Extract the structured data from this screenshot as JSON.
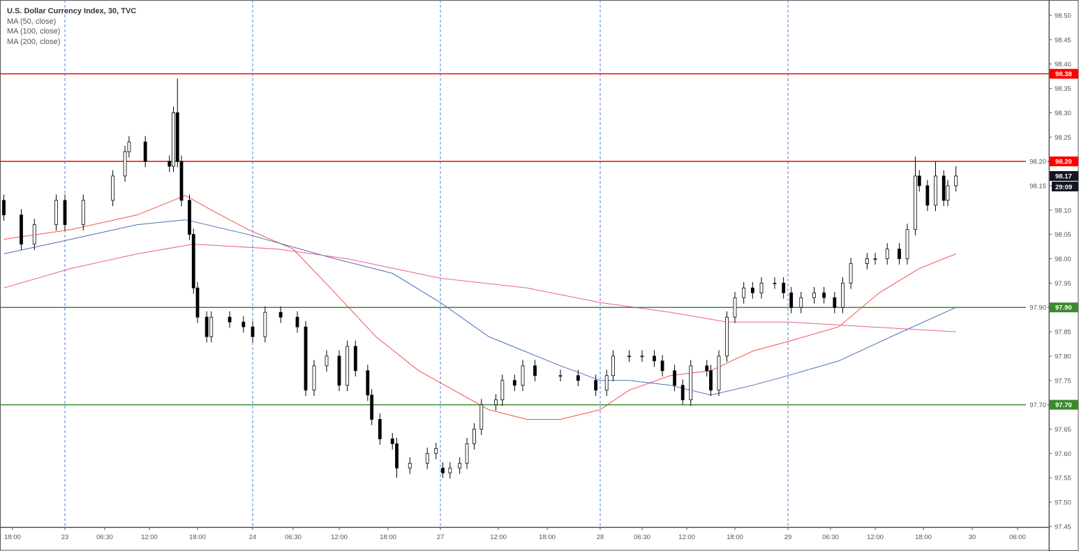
{
  "legend": {
    "title": "U.S. Dollar Currency Index, 30, TVC",
    "ma": [
      "MA (50, close)",
      "MA (100, close)",
      "MA (200, close)"
    ]
  },
  "colors": {
    "bull": "#ffffff",
    "bear": "#000000",
    "resistance": "#ff0000",
    "support": "#3c8a2e",
    "ma50": "#f2524f",
    "ma100": "#4a6fb8",
    "ma200": "#ec5d8b",
    "last_price_tag": "#131722",
    "day_separator": "#4a80d8"
  },
  "chart_data": {
    "type": "candlestick",
    "symbol": "U.S. Dollar Currency Index, 30, TVC",
    "ylim": [
      97.45,
      98.5
    ],
    "yticks": [
      "98.50",
      "98.45",
      "98.40",
      "98.35",
      "98.30",
      "98.25",
      "98.20",
      "98.15",
      "98.10",
      "98.05",
      "98.00",
      "97.95",
      "97.90",
      "97.85",
      "97.80",
      "97.75",
      "97.70",
      "97.65",
      "97.60",
      "97.55",
      "97.50",
      "97.45"
    ],
    "xticks": [
      {
        "t": "22 18:00",
        "label": "18:00"
      },
      {
        "t": "23 00:00",
        "label": "23"
      },
      {
        "t": "23 06:30",
        "label": "06:30"
      },
      {
        "t": "23 12:00",
        "label": "12:00"
      },
      {
        "t": "23 18:00",
        "label": "18:00"
      },
      {
        "t": "24 00:00",
        "label": "24"
      },
      {
        "t": "24 06:30",
        "label": "06:30"
      },
      {
        "t": "24 12:00",
        "label": "12:00"
      },
      {
        "t": "24 18:00",
        "label": "18:00"
      },
      {
        "t": "27 00:00",
        "label": "27"
      },
      {
        "t": "27 12:00",
        "label": "12:00"
      },
      {
        "t": "27 18:00",
        "label": "18:00"
      },
      {
        "t": "28 00:00",
        "label": "28"
      },
      {
        "t": "28 06:30",
        "label": "06:30"
      },
      {
        "t": "28 12:00",
        "label": "12:00"
      },
      {
        "t": "28 18:00",
        "label": "18:00"
      },
      {
        "t": "29 00:00",
        "label": "29"
      },
      {
        "t": "29 06:30",
        "label": "06:30"
      },
      {
        "t": "29 12:00",
        "label": "12:00"
      },
      {
        "t": "29 18:00",
        "label": "18:00"
      },
      {
        "t": "30 00:00",
        "label": "30"
      },
      {
        "t": "30 06:00",
        "label": "06:00"
      }
    ],
    "day_separators": [
      "23 00:00",
      "24 00:00",
      "27 00:00",
      "28 00:00",
      "29 00:00"
    ],
    "candles": [
      [
        "22 17:00",
        98.12,
        98.09
      ],
      [
        "22 19:00",
        98.09,
        98.03
      ],
      [
        "22 20:30",
        98.03,
        98.07
      ],
      [
        "22 23:00",
        98.07,
        98.12
      ],
      [
        "23 00:00",
        98.12,
        98.07
      ],
      [
        "23 03:00",
        98.07,
        98.12
      ],
      [
        "23 07:30",
        98.12,
        98.17
      ],
      [
        "23 09:00",
        98.17,
        98.22
      ],
      [
        "23 09:30",
        98.22,
        98.24
      ],
      [
        "23 11:30",
        98.24,
        98.2
      ],
      [
        "23 14:30",
        98.2,
        98.19
      ],
      [
        "23 15:00",
        98.19,
        98.3
      ],
      [
        "23 15:30",
        98.3,
        98.2,
        98.37
      ],
      [
        "23 16:00",
        98.2,
        98.12
      ],
      [
        "23 17:00",
        98.12,
        98.05
      ],
      [
        "23 17:30",
        98.05,
        97.94
      ],
      [
        "23 18:00",
        97.94,
        97.88
      ],
      [
        "23 19:00",
        97.88,
        97.84
      ],
      [
        "23 19:30",
        97.84,
        97.88
      ],
      [
        "23 21:30",
        97.88,
        97.87
      ],
      [
        "23 23:00",
        97.87,
        97.86
      ],
      [
        "24 00:00",
        97.86,
        97.84
      ],
      [
        "24 02:00",
        97.84,
        97.89
      ],
      [
        "24 04:30",
        97.89,
        97.88
      ],
      [
        "24 07:00",
        97.88,
        97.86
      ],
      [
        "24 08:00",
        97.86,
        97.73
      ],
      [
        "24 09:00",
        97.73,
        97.78
      ],
      [
        "24 10:30",
        97.78,
        97.8
      ],
      [
        "24 12:00",
        97.8,
        97.74
      ],
      [
        "24 13:00",
        97.74,
        97.82
      ],
      [
        "24 14:00",
        97.82,
        97.77
      ],
      [
        "24 15:30",
        97.77,
        97.72
      ],
      [
        "24 16:00",
        97.72,
        97.67
      ],
      [
        "24 17:00",
        97.67,
        97.63
      ],
      [
        "24 18:30",
        97.63,
        97.62
      ],
      [
        "24 19:00",
        97.62,
        97.57,
        null,
        97.55
      ],
      [
        "24 20:30",
        97.57,
        97.58
      ],
      [
        "24 22:30",
        97.58,
        97.6
      ],
      [
        "24 23:30",
        97.6,
        97.61
      ],
      [
        "27 00:30",
        97.57,
        97.56,
        null,
        97.55
      ],
      [
        "27 02:00",
        97.56,
        97.57
      ],
      [
        "27 04:00",
        97.57,
        97.58
      ],
      [
        "27 05:30",
        97.58,
        97.62
      ],
      [
        "27 07:00",
        97.62,
        97.65
      ],
      [
        "27 08:30",
        97.65,
        97.7
      ],
      [
        "27 11:30",
        97.7,
        97.71
      ],
      [
        "27 12:30",
        97.71,
        97.75
      ],
      [
        "27 14:00",
        97.75,
        97.74
      ],
      [
        "27 15:00",
        97.74,
        97.78
      ],
      [
        "27 16:30",
        97.78,
        97.76
      ],
      [
        "27 19:30",
        97.76,
        97.76
      ],
      [
        "27 21:30",
        97.76,
        97.75
      ],
      [
        "27 23:30",
        97.75,
        97.73
      ],
      [
        "28 01:00",
        97.73,
        97.76
      ],
      [
        "28 02:00",
        97.76,
        97.8
      ],
      [
        "28 04:30",
        97.8,
        97.8
      ],
      [
        "28 06:30",
        97.8,
        97.8
      ],
      [
        "28 08:00",
        97.8,
        97.79
      ],
      [
        "28 09:00",
        97.79,
        97.77
      ],
      [
        "28 10:30",
        97.77,
        97.74
      ],
      [
        "28 11:30",
        97.74,
        97.71,
        null,
        97.7
      ],
      [
        "28 12:30",
        97.71,
        97.78
      ],
      [
        "28 14:30",
        97.78,
        97.77
      ],
      [
        "28 15:00",
        97.77,
        97.73
      ],
      [
        "28 16:00",
        97.73,
        97.8
      ],
      [
        "28 17:00",
        97.8,
        97.88
      ],
      [
        "28 18:00",
        97.88,
        97.92
      ],
      [
        "28 19:00",
        97.92,
        97.94
      ],
      [
        "28 20:00",
        97.94,
        97.93
      ],
      [
        "28 21:00",
        97.93,
        97.95
      ],
      [
        "28 22:30",
        97.95,
        97.95
      ],
      [
        "28 23:30",
        97.95,
        97.93
      ],
      [
        "29 00:30",
        97.93,
        97.9
      ],
      [
        "29 02:00",
        97.9,
        97.92
      ],
      [
        "29 04:00",
        97.92,
        97.93
      ],
      [
        "29 05:30",
        97.93,
        97.92
      ],
      [
        "29 07:00",
        97.92,
        97.9
      ],
      [
        "29 08:00",
        97.9,
        97.95
      ],
      [
        "29 09:00",
        97.95,
        97.99
      ],
      [
        "29 11:00",
        97.99,
        98.0
      ],
      [
        "29 12:00",
        98.0,
        98.0
      ],
      [
        "29 13:30",
        98.0,
        98.02
      ],
      [
        "29 15:00",
        98.02,
        98.0
      ],
      [
        "29 16:00",
        98.0,
        98.06
      ],
      [
        "29 17:00",
        98.06,
        98.17,
        98.21
      ],
      [
        "29 17:30",
        98.17,
        98.15
      ],
      [
        "29 18:30",
        98.15,
        98.11
      ],
      [
        "29 19:30",
        98.11,
        98.17,
        98.2
      ],
      [
        "29 20:30",
        98.17,
        98.12
      ],
      [
        "29 21:00",
        98.12,
        98.15
      ],
      [
        "29 22:00",
        98.15,
        98.17,
        98.19
      ]
    ],
    "moving_averages": [
      {
        "name": "MA (50, close)",
        "color": "#f2524f",
        "points": [
          [
            "22 17:00",
            98.04
          ],
          [
            "23 01:00",
            98.06
          ],
          [
            "23 10:30",
            98.09
          ],
          [
            "23 16:30",
            98.13
          ],
          [
            "23 19:30",
            98.1
          ],
          [
            "23 23:30",
            98.06
          ],
          [
            "24 06:30",
            98.02
          ],
          [
            "24 11:30",
            97.93
          ],
          [
            "24 16:30",
            97.84
          ],
          [
            "24 21:30",
            97.77
          ],
          [
            "27 10:00",
            97.69
          ],
          [
            "27 15:30",
            97.67
          ],
          [
            "27 19:30",
            97.67
          ],
          [
            "28 00:00",
            97.69
          ],
          [
            "28 04:30",
            97.73
          ],
          [
            "28 10:00",
            97.76
          ],
          [
            "28 15:00",
            97.77
          ],
          [
            "28 20:00",
            97.81
          ],
          [
            "29 00:00",
            97.83
          ],
          [
            "29 07:30",
            97.86
          ],
          [
            "29 12:30",
            97.93
          ],
          [
            "29 17:30",
            97.98
          ],
          [
            "29 22:00",
            98.01
          ]
        ]
      },
      {
        "name": "MA (100, close)",
        "color": "#4a6fb8",
        "points": [
          [
            "22 17:00",
            98.01
          ],
          [
            "23 01:00",
            98.04
          ],
          [
            "23 10:30",
            98.07
          ],
          [
            "23 16:30",
            98.08
          ],
          [
            "23 23:30",
            98.05
          ],
          [
            "24 11:30",
            98.0
          ],
          [
            "24 18:30",
            97.97
          ],
          [
            "27 00:00",
            97.91
          ],
          [
            "27 10:00",
            97.84
          ],
          [
            "27 19:30",
            97.78
          ],
          [
            "28 00:00",
            97.75
          ],
          [
            "28 04:30",
            97.75
          ],
          [
            "28 10:00",
            97.74
          ],
          [
            "28 15:00",
            97.72
          ],
          [
            "28 20:00",
            97.74
          ],
          [
            "29 00:00",
            97.76
          ],
          [
            "29 07:30",
            97.79
          ],
          [
            "29 14:00",
            97.84
          ],
          [
            "29 22:00",
            97.9
          ]
        ]
      },
      {
        "name": "MA (200, close)",
        "color": "#ec5d8b",
        "points": [
          [
            "22 17:00",
            97.94
          ],
          [
            "23 01:00",
            97.98
          ],
          [
            "23 10:30",
            98.01
          ],
          [
            "23 17:30",
            98.03
          ],
          [
            "24 04:00",
            98.02
          ],
          [
            "24 13:00",
            98.0
          ],
          [
            "27 00:00",
            97.96
          ],
          [
            "27 15:30",
            97.94
          ],
          [
            "28 00:00",
            97.91
          ],
          [
            "28 10:00",
            97.89
          ],
          [
            "28 17:00",
            97.87
          ],
          [
            "29 00:00",
            97.87
          ],
          [
            "29 11:30",
            97.86
          ],
          [
            "29 22:00",
            97.85
          ]
        ]
      }
    ],
    "levels": [
      {
        "price": 98.38,
        "label": "98.38",
        "color": "#ff0000"
      },
      {
        "price": 98.2,
        "label": "98.20",
        "color": "#ff0000"
      },
      {
        "price": 97.9,
        "label": "97.90",
        "color": "#3c8a2e"
      },
      {
        "price": 97.7,
        "label": "97.70",
        "color": "#3c8a2e"
      }
    ],
    "last_price": {
      "price": 98.17,
      "label": "98.17",
      "countdown": "29:09"
    }
  }
}
